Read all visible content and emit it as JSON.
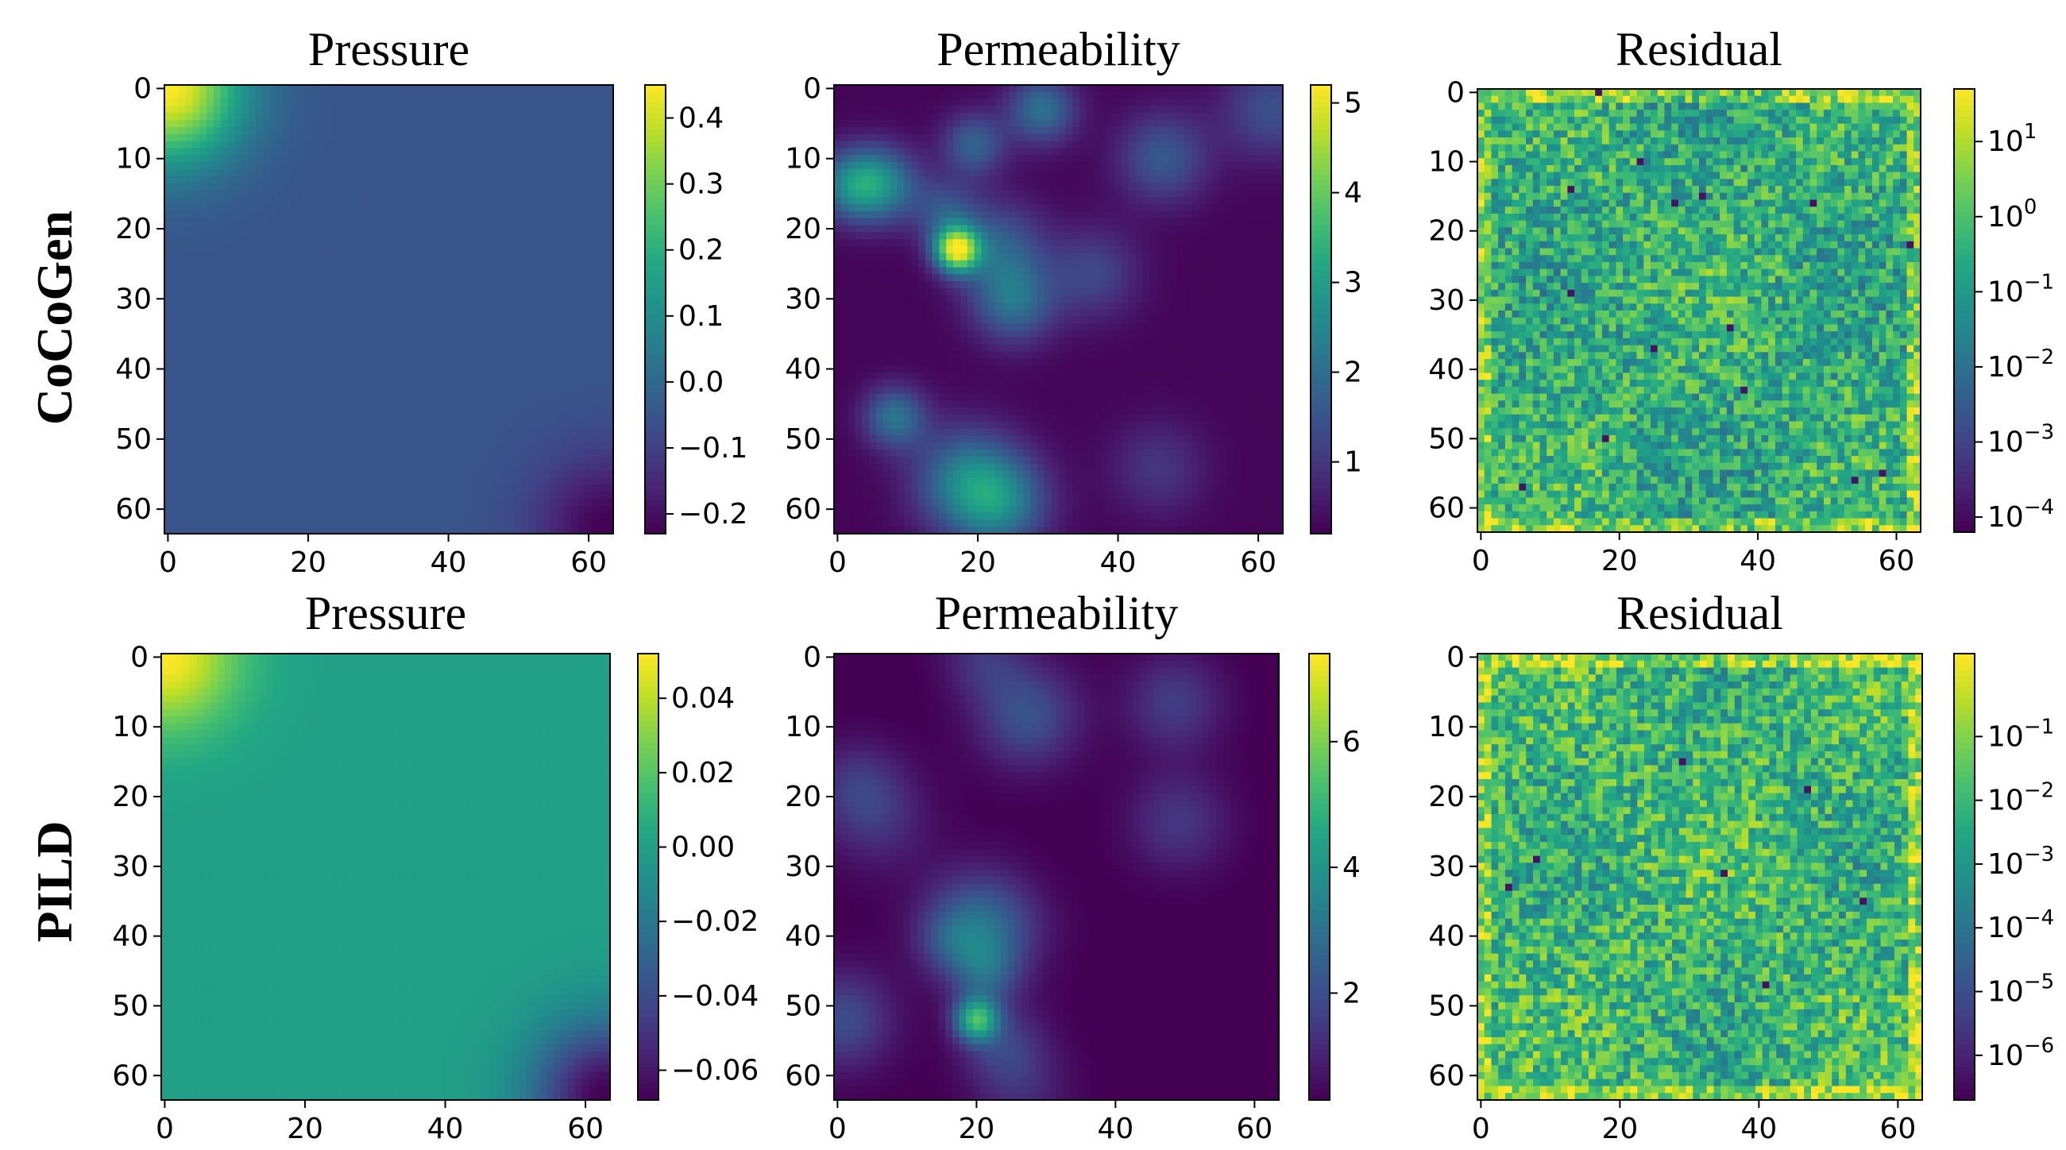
{
  "colormap": "viridis",
  "rows": [
    {
      "label": "CoCoGen"
    },
    {
      "label": "PILD"
    }
  ],
  "chart_data": [
    {
      "type": "heatmap",
      "row": "CoCoGen",
      "title": "Pressure",
      "grid_size": 64,
      "xticks": [
        0,
        20,
        40,
        60
      ],
      "yticks": [
        0,
        10,
        20,
        30,
        40,
        50,
        60
      ],
      "colorbar": {
        "scale": "linear",
        "range": [
          -0.23,
          0.45
        ],
        "ticks": [
          {
            "v": 0.4,
            "t": "0.4"
          },
          {
            "v": 0.3,
            "t": "0.3"
          },
          {
            "v": 0.2,
            "t": "0.2"
          },
          {
            "v": 0.1,
            "t": "0.1"
          },
          {
            "v": 0.0,
            "t": "0.0"
          },
          {
            "v": -0.1,
            "t": "−0.1"
          },
          {
            "v": -0.2,
            "t": "−0.2"
          }
        ]
      },
      "field": {
        "kind": "pressure",
        "high_corner": [
          0,
          0
        ],
        "low_corner": [
          63,
          63
        ],
        "background": -0.05
      }
    },
    {
      "type": "heatmap",
      "row": "CoCoGen",
      "title": "Permeability",
      "grid_size": 64,
      "xticks": [
        0,
        20,
        40,
        60
      ],
      "yticks": [
        0,
        10,
        20,
        30,
        40,
        50,
        60
      ],
      "colorbar": {
        "scale": "linear",
        "range": [
          0.2,
          5.2
        ],
        "ticks": [
          {
            "v": 5,
            "t": "5"
          },
          {
            "v": 4,
            "t": "4"
          },
          {
            "v": 3,
            "t": "3"
          },
          {
            "v": 2,
            "t": "2"
          },
          {
            "v": 1,
            "t": "1"
          }
        ]
      },
      "field": {
        "kind": "blobs",
        "seed": 11,
        "peak": [
          17,
          23
        ]
      }
    },
    {
      "type": "heatmap",
      "row": "CoCoGen",
      "title": "Residual",
      "grid_size": 64,
      "xticks": [
        0,
        20,
        40,
        60
      ],
      "yticks": [
        0,
        10,
        20,
        30,
        40,
        50,
        60
      ],
      "colorbar": {
        "scale": "log",
        "range": [
          -4.2,
          1.7
        ],
        "ticks": [
          {
            "v": 1,
            "base": "10",
            "exp": "1"
          },
          {
            "v": 0,
            "base": "10",
            "exp": "0"
          },
          {
            "v": -1,
            "base": "10",
            "exp": "−1"
          },
          {
            "v": -2,
            "base": "10",
            "exp": "−2"
          },
          {
            "v": -3,
            "base": "10",
            "exp": "−3"
          },
          {
            "v": -4,
            "base": "10",
            "exp": "−4"
          }
        ]
      },
      "field": {
        "kind": "noise",
        "seed": 21,
        "center": 0.62
      }
    },
    {
      "type": "heatmap",
      "row": "PILD",
      "title": "Pressure",
      "grid_size": 64,
      "xticks": [
        0,
        20,
        40,
        60
      ],
      "yticks": [
        0,
        10,
        20,
        30,
        40,
        50,
        60
      ],
      "colorbar": {
        "scale": "linear",
        "range": [
          -0.068,
          0.052
        ],
        "ticks": [
          {
            "v": 0.04,
            "t": "0.04"
          },
          {
            "v": 0.02,
            "t": "0.02"
          },
          {
            "v": 0.0,
            "t": "0.00"
          },
          {
            "v": -0.02,
            "t": "−0.02"
          },
          {
            "v": -0.04,
            "t": "−0.04"
          },
          {
            "v": -0.06,
            "t": "−0.06"
          }
        ]
      },
      "field": {
        "kind": "pressure",
        "high_corner": [
          0,
          0
        ],
        "low_corner": [
          63,
          63
        ],
        "background": 0.0
      }
    },
    {
      "type": "heatmap",
      "row": "PILD",
      "title": "Permeability",
      "grid_size": 64,
      "xticks": [
        0,
        20,
        40,
        60
      ],
      "yticks": [
        0,
        10,
        20,
        30,
        40,
        50,
        60
      ],
      "colorbar": {
        "scale": "linear",
        "range": [
          0.3,
          7.4
        ],
        "ticks": [
          {
            "v": 6,
            "t": "6"
          },
          {
            "v": 4,
            "t": "4"
          },
          {
            "v": 2,
            "t": "2"
          }
        ]
      },
      "field": {
        "kind": "blobs",
        "seed": 37,
        "peak": [
          20,
          52
        ]
      }
    },
    {
      "type": "heatmap",
      "row": "PILD",
      "title": "Residual",
      "grid_size": 64,
      "xticks": [
        0,
        20,
        40,
        60
      ],
      "yticks": [
        0,
        10,
        20,
        30,
        40,
        50,
        60
      ],
      "colorbar": {
        "scale": "log",
        "range": [
          -6.7,
          0.3
        ],
        "ticks": [
          {
            "v": -1,
            "base": "10",
            "exp": "−1"
          },
          {
            "v": -2,
            "base": "10",
            "exp": "−2"
          },
          {
            "v": -3,
            "base": "10",
            "exp": "−3"
          },
          {
            "v": -4,
            "base": "10",
            "exp": "−4"
          },
          {
            "v": -5,
            "base": "10",
            "exp": "−5"
          },
          {
            "v": -6,
            "base": "10",
            "exp": "−6"
          }
        ]
      },
      "field": {
        "kind": "noise",
        "seed": 53,
        "center": 0.66
      }
    }
  ]
}
